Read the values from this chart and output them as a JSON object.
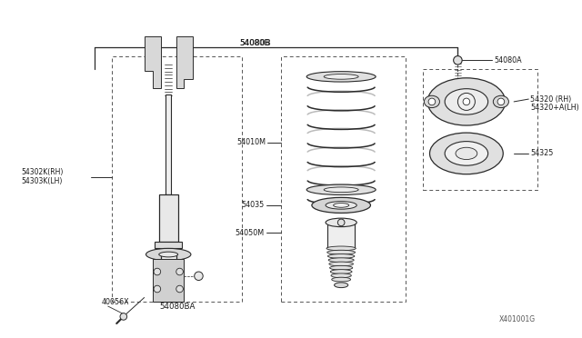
{
  "bg_color": "#ffffff",
  "line_color": "#2a2a2a",
  "dashed_color": "#555555",
  "text_color": "#1a1a1a",
  "watermark": "X401001G",
  "label_54080B": "54080B",
  "label_54080A": "54080A",
  "label_54320": "54320 (RH)",
  "label_54320b": "54320+A(LH)",
  "label_54325": "54325",
  "label_54010M": "54010M",
  "label_54302K": "54302K(RH)",
  "label_54303K": "54303K(LH)",
  "label_40056X": "40056X",
  "label_54080BA": "54080BA",
  "label_54035": "54035",
  "label_54050M": "54050M"
}
